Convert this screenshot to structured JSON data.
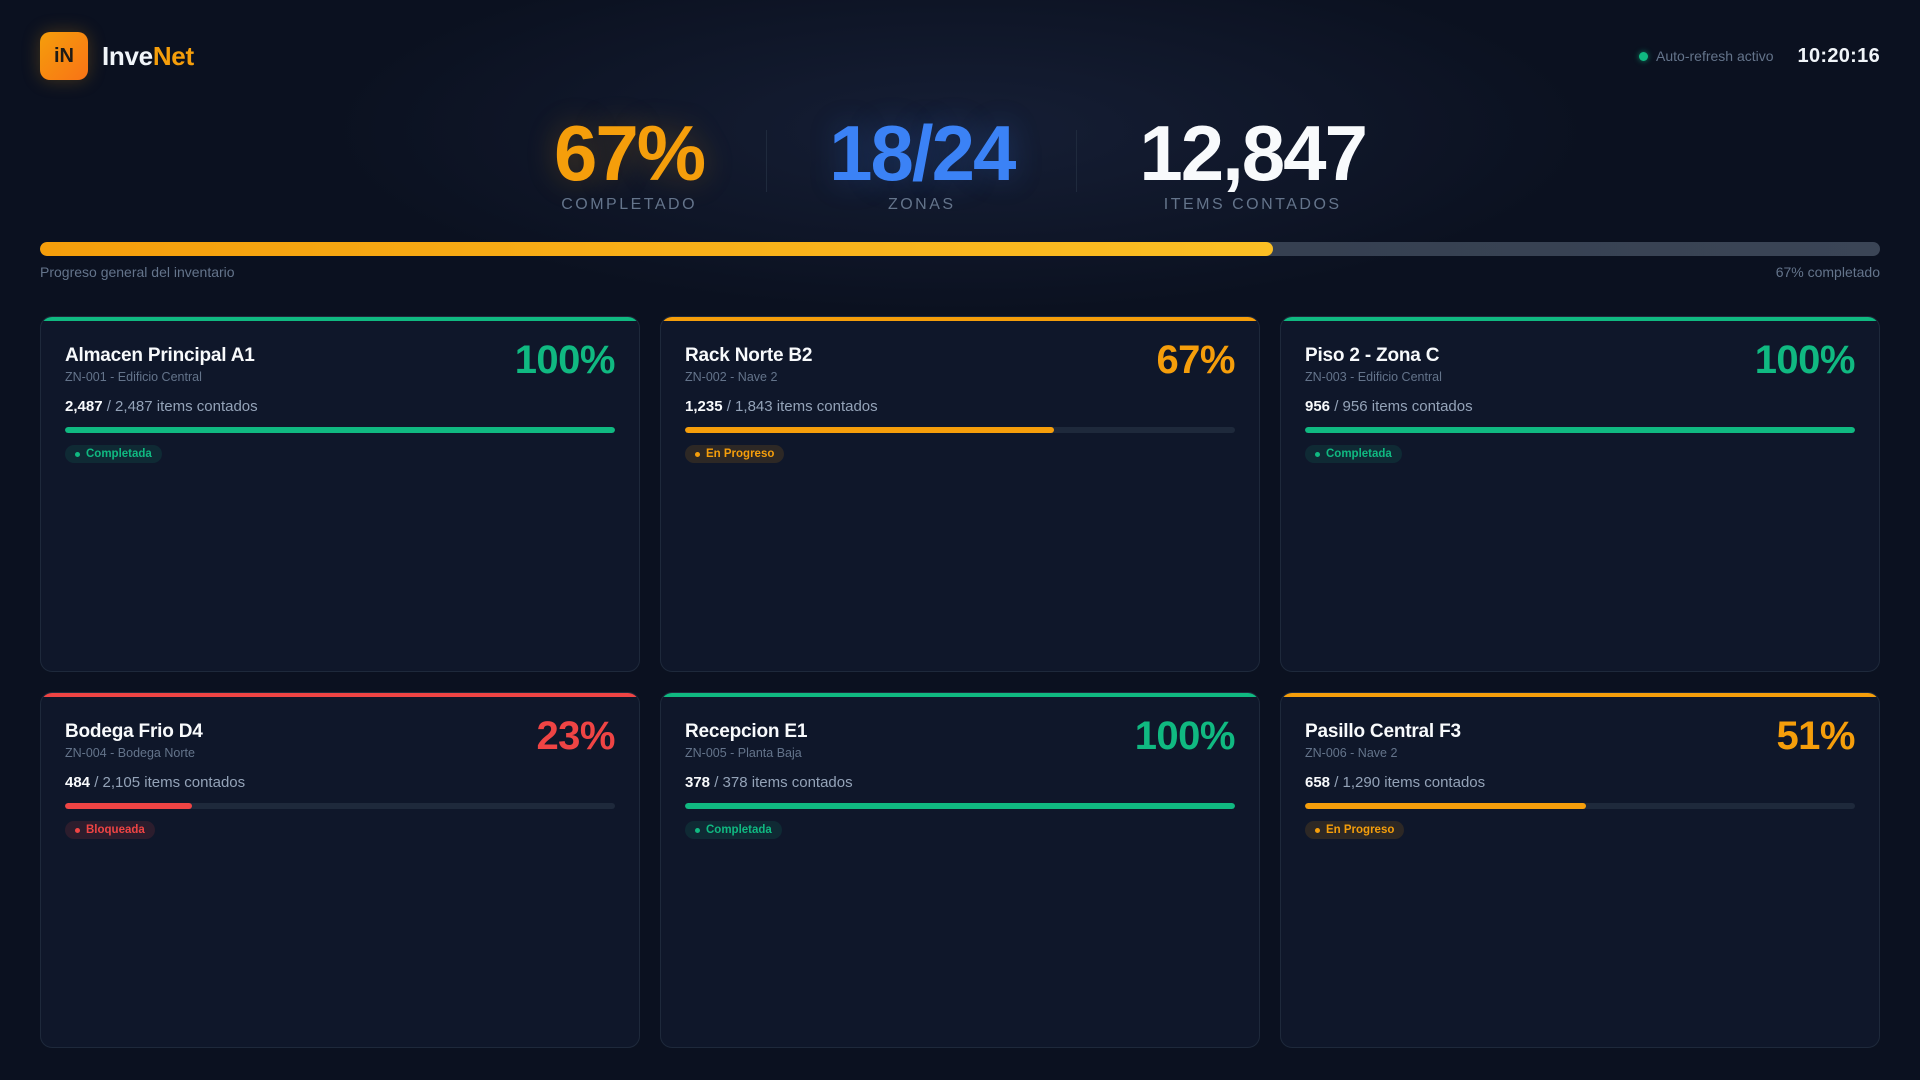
{
  "brand": {
    "logo_text": "iN",
    "name_part1": "Inve",
    "name_part2": "Net"
  },
  "header": {
    "refresh_label": "Auto-refresh activo",
    "time": "10:20:16"
  },
  "kpis": [
    {
      "value": "67%",
      "label": "COMPLETADO",
      "color": "#f59e0b"
    },
    {
      "value": "18/24",
      "label": "ZONAS",
      "color": "#3b82f6"
    },
    {
      "value": "12,847",
      "label": "ITEMS CONTADOS",
      "color": "#f8fafc"
    }
  ],
  "overall": {
    "progress": 67,
    "label_left": "Progreso general del inventario",
    "label_right": "67% completado"
  },
  "zones": [
    {
      "title": "Almacen Principal A1",
      "code": "ZN-001 - Edificio Central",
      "pct": "100%",
      "progress": 100,
      "counted": "2,487",
      "rest": "/ 2,487 items contados",
      "status": "Completada",
      "state": "green"
    },
    {
      "title": "Rack Norte B2",
      "code": "ZN-002 - Nave 2",
      "pct": "67%",
      "progress": 67,
      "counted": "1,235",
      "rest": "/ 1,843 items contados",
      "status": "En Progreso",
      "state": "amber"
    },
    {
      "title": "Piso 2 - Zona C",
      "code": "ZN-003 - Edificio Central",
      "pct": "100%",
      "progress": 100,
      "counted": "956",
      "rest": "/ 956 items contados",
      "status": "Completada",
      "state": "green"
    },
    {
      "title": "Bodega Frio D4",
      "code": "ZN-004 - Bodega Norte",
      "pct": "23%",
      "progress": 23,
      "counted": "484",
      "rest": "/ 2,105 items contados",
      "status": "Bloqueada",
      "state": "red"
    },
    {
      "title": "Recepcion E1",
      "code": "ZN-005 - Planta Baja",
      "pct": "100%",
      "progress": 100,
      "counted": "378",
      "rest": "/ 378 items contados",
      "status": "Completada",
      "state": "green"
    },
    {
      "title": "Pasillo Central F3",
      "code": "ZN-006 - Nave 2",
      "pct": "51%",
      "progress": 51,
      "counted": "658",
      "rest": "/ 1,290 items contados",
      "status": "En Progreso",
      "state": "amber"
    }
  ],
  "colors": {
    "green": "#10b981",
    "amber": "#f59e0b",
    "red": "#ef4444",
    "blue": "#3b82f6"
  }
}
